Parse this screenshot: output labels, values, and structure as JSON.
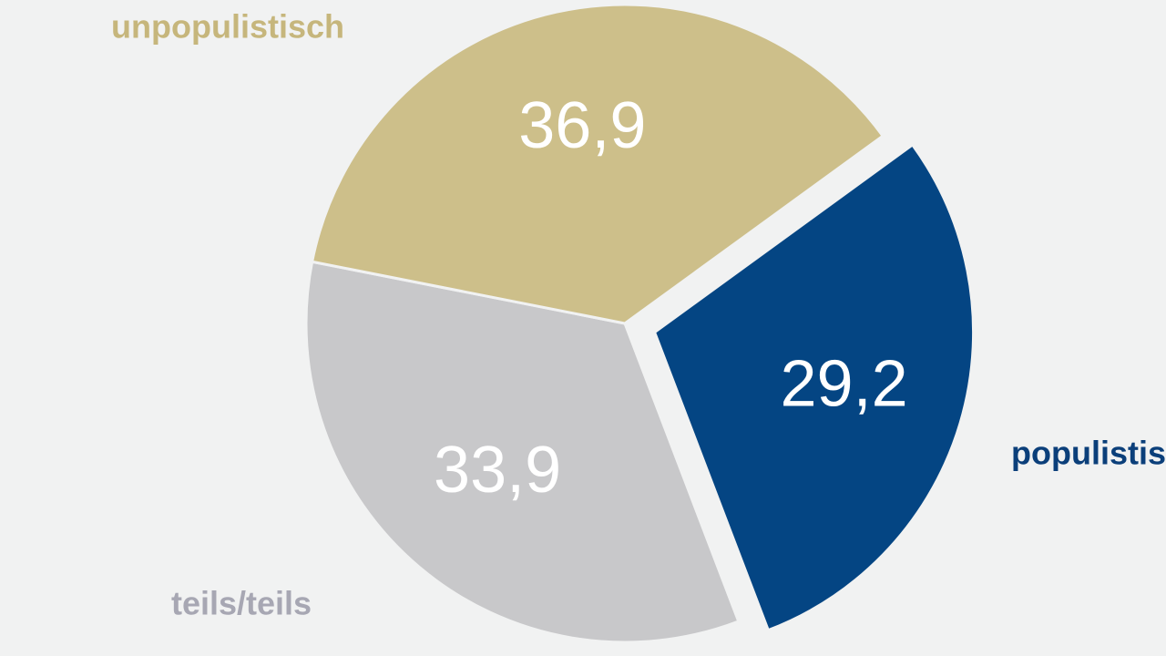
{
  "chart_data": {
    "type": "pie",
    "title": "",
    "slices": [
      {
        "label": "populistisch",
        "value": 29.2,
        "display": "29,2",
        "color": "#044583",
        "label_color": "#0b3f7a",
        "exploded": true
      },
      {
        "label": "teils/teils",
        "value": 33.9,
        "display": "33,9",
        "color": "#c8c8ca",
        "label_color": "#a7a7b3",
        "exploded": false
      },
      {
        "label": "unpopulistisch",
        "value": 36.9,
        "display": "36,9",
        "color": "#cdbf8a",
        "label_color": "#c6b67c",
        "exploded": false
      }
    ],
    "start_angle_deg": 54,
    "background": "#f1f2f2"
  }
}
